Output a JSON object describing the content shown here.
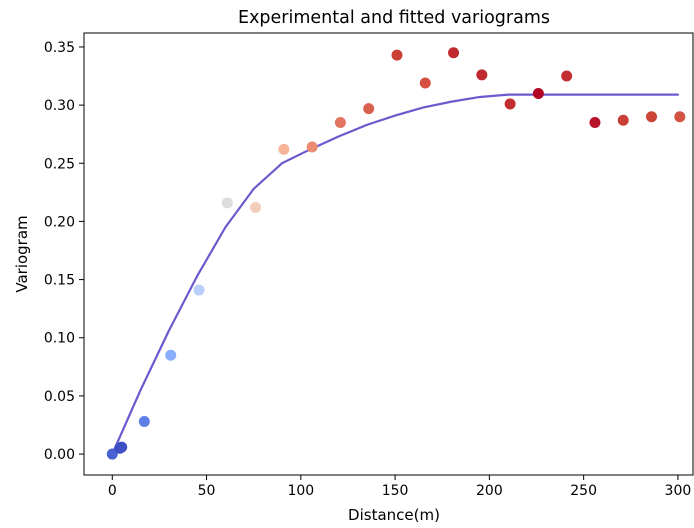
{
  "chart_data": {
    "type": "scatter",
    "title": "Experimental and fitted variograms",
    "xlabel": "Distance(m)",
    "ylabel": "Variogram",
    "xlim": [
      -15,
      308
    ],
    "ylim": [
      -0.018,
      0.362
    ],
    "xticks": [
      0,
      50,
      100,
      150,
      200,
      250,
      300
    ],
    "yticks": [
      0.0,
      0.05,
      0.1,
      0.15,
      0.2,
      0.25,
      0.3,
      0.35
    ],
    "xtick_labels": [
      "0",
      "50",
      "100",
      "150",
      "200",
      "250",
      "300"
    ],
    "ytick_labels": [
      "0.00",
      "0.05",
      "0.10",
      "0.15",
      "0.20",
      "0.25",
      "0.30",
      "0.35"
    ],
    "grid": false,
    "legend": "none",
    "series": [
      {
        "kind": "scatter",
        "colormap": "coolwarm",
        "x": [
          0,
          4,
          5,
          17,
          31,
          46,
          61,
          76,
          91,
          106,
          121,
          136,
          151,
          166,
          181,
          196,
          211,
          226,
          241,
          256,
          271,
          286,
          301
        ],
        "y": [
          0.0,
          0.005,
          0.006,
          0.028,
          0.085,
          0.141,
          0.216,
          0.212,
          0.262,
          0.264,
          0.285,
          0.297,
          0.343,
          0.319,
          0.345,
          0.326,
          0.301,
          0.31,
          0.325,
          0.285,
          0.287,
          0.29,
          0.29
        ],
        "colors": [
          "#4a61d4",
          "#3b4cc0",
          "#3f50c6",
          "#5f7fe7",
          "#8aaefc",
          "#b8d0f9",
          "#dcdcdc",
          "#f1cdba",
          "#f5b497",
          "#ec8c74",
          "#e27460",
          "#d9604d",
          "#c93f36",
          "#d55042",
          "#c0282f",
          "#c0282f",
          "#c32e31",
          "#b40426",
          "#c32e31",
          "#b8122a",
          "#c93f36",
          "#cd4537",
          "#d25342"
        ]
      },
      {
        "kind": "line",
        "color": "#6a5acd",
        "x": [
          0,
          15,
          30,
          45,
          60,
          75,
          90,
          105,
          120,
          135,
          150,
          165,
          180,
          195,
          210,
          225,
          240,
          255,
          270,
          285,
          300
        ],
        "y": [
          0.0,
          0.055,
          0.106,
          0.153,
          0.195,
          0.228,
          0.25,
          0.262,
          0.273,
          0.283,
          0.291,
          0.298,
          0.303,
          0.307,
          0.309,
          0.309,
          0.309,
          0.309,
          0.309,
          0.309,
          0.309
        ]
      }
    ]
  }
}
